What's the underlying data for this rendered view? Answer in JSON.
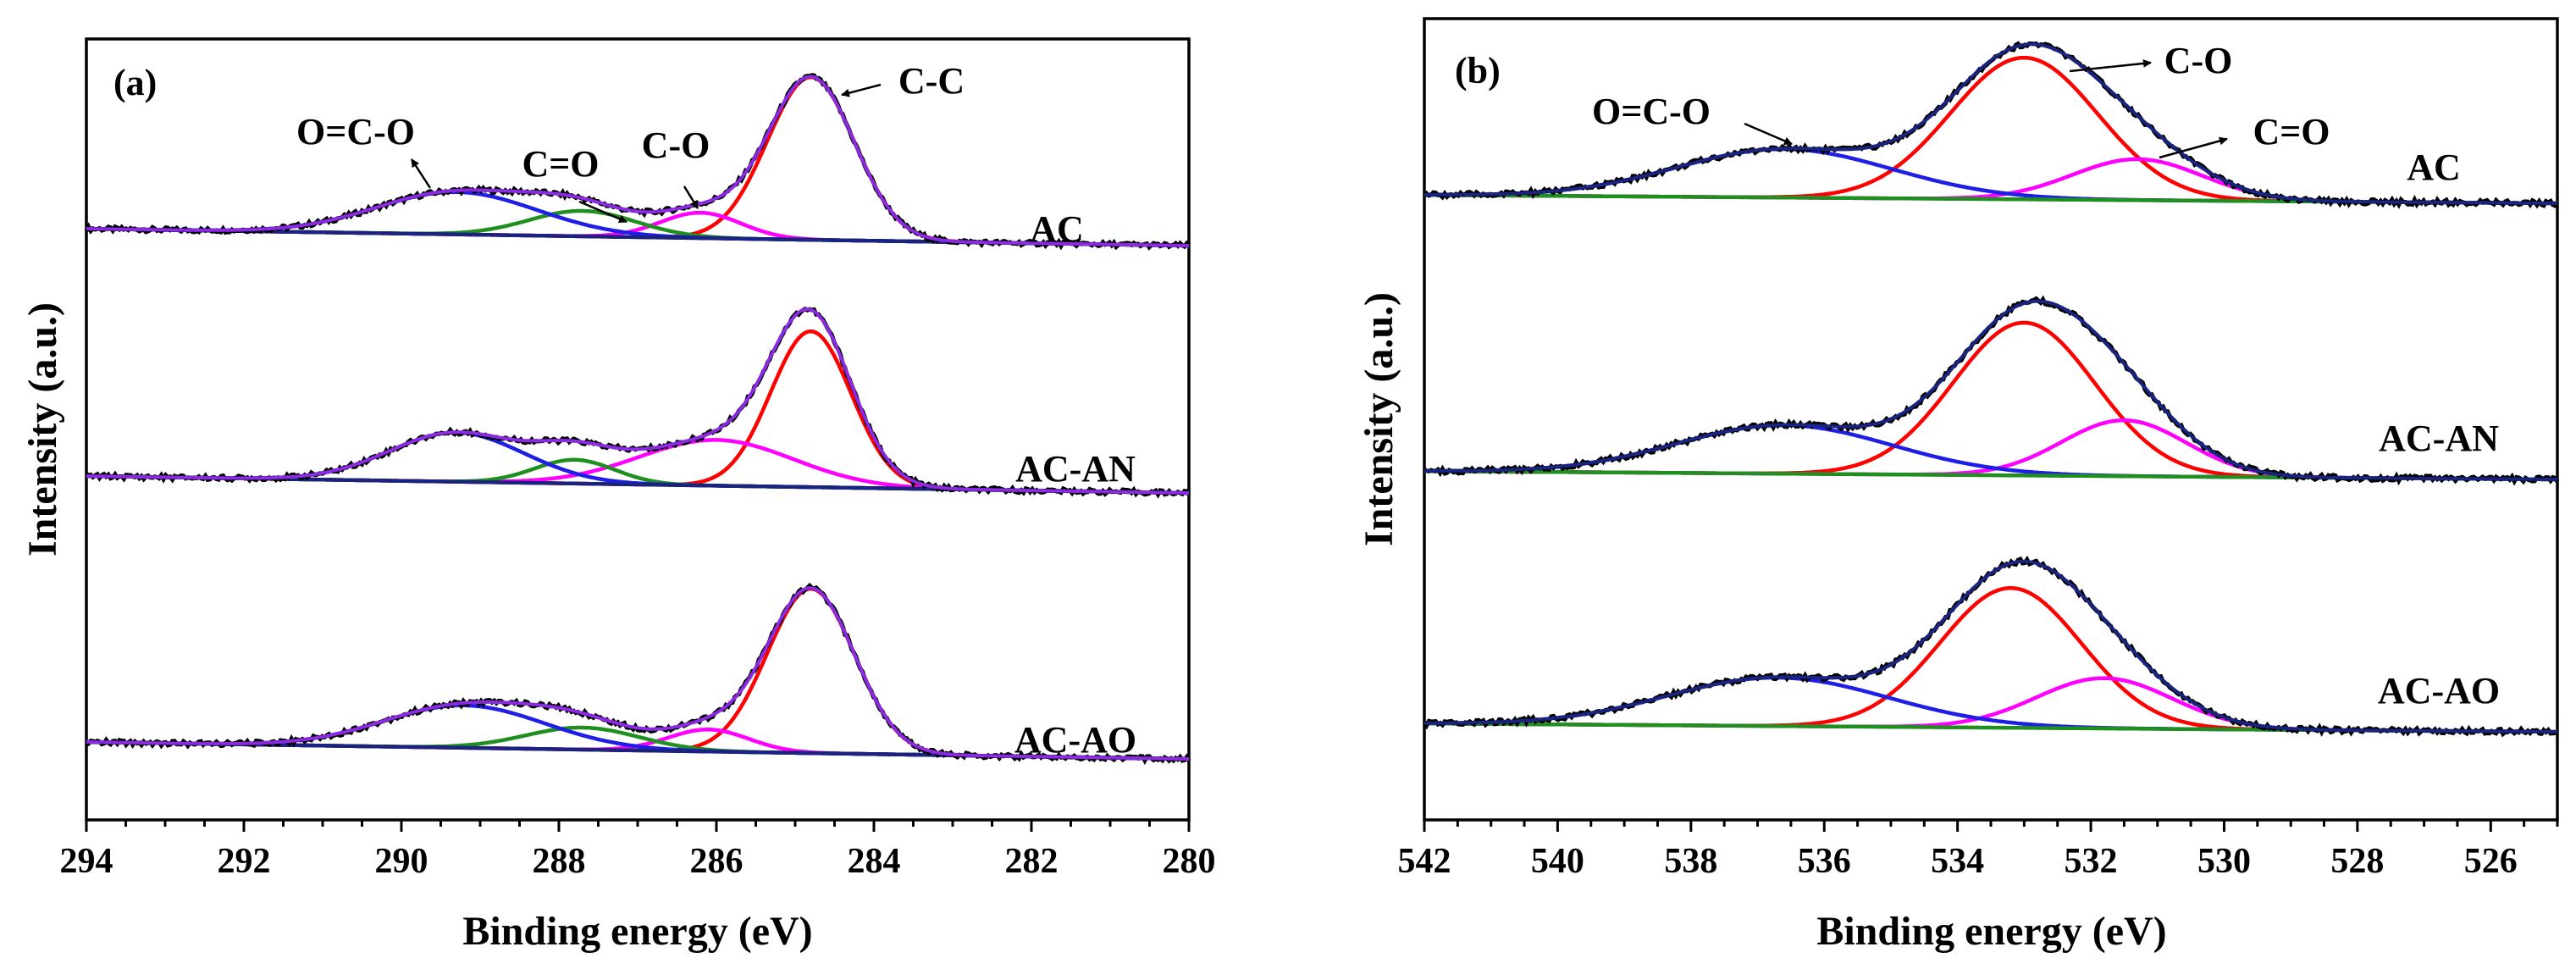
{
  "colors": {
    "raw": "#000000",
    "envelope": "#8a2be2",
    "envelope_b": "#1a237e",
    "background": "#1a237e",
    "background_b": "#1f8f1f",
    "red": "#ff0000",
    "green": "#1f8f1f",
    "blue": "#1e1ee6",
    "magenta": "#ff00ff"
  },
  "chart_data": [
    {
      "type": "line",
      "panel_label": "(a)",
      "xlabel": "Binding energy (eV)",
      "ylabel": "Intensity (a.u.)",
      "xlim": [
        294,
        280
      ],
      "x_reversed": true,
      "xticks": [
        294,
        292,
        290,
        288,
        286,
        284,
        282,
        280
      ],
      "yticks": [],
      "grid": false,
      "samples": [
        {
          "name": "AC",
          "baseline": {
            "start": 1.0,
            "end": 0.0
          },
          "components": [
            {
              "label": "C-C",
              "center": 284.8,
              "height": 9.6,
              "fwhm": 1.3,
              "color": "red"
            },
            {
              "label": "C-O",
              "center": 286.2,
              "height": 1.5,
              "fwhm": 1.2,
              "color": "magenta"
            },
            {
              "label": "C=O",
              "center": 287.7,
              "height": 1.5,
              "fwhm": 1.6,
              "color": "green"
            },
            {
              "label": "O=C-O",
              "center": 289.3,
              "height": 2.5,
              "fwhm": 2.4,
              "color": "blue"
            }
          ]
        },
        {
          "name": "AC-AN",
          "baseline": {
            "start": 1.0,
            "end": 0.0
          },
          "components": [
            {
              "label": "C-C",
              "center": 284.8,
              "height": 9.2,
              "fwhm": 1.2,
              "color": "red"
            },
            {
              "label": "C-O",
              "center": 286.0,
              "height": 2.7,
              "fwhm": 2.3,
              "color": "magenta"
            },
            {
              "label": "C=O",
              "center": 287.8,
              "height": 1.4,
              "fwhm": 1.2,
              "color": "green"
            },
            {
              "label": "O=C-O",
              "center": 289.3,
              "height": 2.9,
              "fwhm": 2.0,
              "color": "blue"
            }
          ]
        },
        {
          "name": "AC-AO",
          "baseline": {
            "start": 1.0,
            "end": 0.0
          },
          "components": [
            {
              "label": "C-C",
              "center": 284.8,
              "height": 9.7,
              "fwhm": 1.3,
              "color": "red"
            },
            {
              "label": "C-O",
              "center": 286.1,
              "height": 1.3,
              "fwhm": 1.2,
              "color": "magenta"
            },
            {
              "label": "C=O",
              "center": 287.7,
              "height": 1.3,
              "fwhm": 1.7,
              "color": "green"
            },
            {
              "label": "O=C-O",
              "center": 289.2,
              "height": 2.5,
              "fwhm": 2.4,
              "color": "blue"
            }
          ]
        }
      ],
      "annotations": [
        "O=C-O",
        "C=O",
        "C-O",
        "C-C"
      ]
    },
    {
      "type": "line",
      "panel_label": "(b)",
      "xlabel": "Binding energy (eV)",
      "ylabel": "Intensity (a.u.)",
      "xlim": [
        542,
        525
      ],
      "x_reversed": true,
      "xticks": [
        542,
        540,
        538,
        536,
        534,
        532,
        530,
        528,
        526
      ],
      "yticks": [],
      "grid": false,
      "samples": [
        {
          "name": "AC",
          "baseline": {
            "start": 0.45,
            "end": 0.0
          },
          "components": [
            {
              "label": "C-O",
              "center": 533.0,
              "height": 7.6,
              "fwhm": 2.6,
              "color": "red"
            },
            {
              "label": "C=O",
              "center": 531.3,
              "height": 2.2,
              "fwhm": 2.3,
              "color": "magenta"
            },
            {
              "label": "O=C-O",
              "center": 536.6,
              "height": 2.6,
              "fwhm": 3.8,
              "color": "blue"
            }
          ]
        },
        {
          "name": "AC-AN",
          "baseline": {
            "start": 0.45,
            "end": 0.0
          },
          "components": [
            {
              "label": "C-O",
              "center": 533.0,
              "height": 8.2,
              "fwhm": 2.5,
              "color": "red"
            },
            {
              "label": "C=O",
              "center": 531.5,
              "height": 3.0,
              "fwhm": 2.2,
              "color": "magenta"
            },
            {
              "label": "O=C-O",
              "center": 536.6,
              "height": 2.6,
              "fwhm": 3.8,
              "color": "blue"
            }
          ]
        },
        {
          "name": "AC-AO",
          "baseline": {
            "start": 0.45,
            "end": 0.0
          },
          "components": [
            {
              "label": "C-O",
              "center": 533.2,
              "height": 7.5,
              "fwhm": 2.5,
              "color": "red"
            },
            {
              "label": "C=O",
              "center": 531.8,
              "height": 2.7,
              "fwhm": 2.4,
              "color": "magenta"
            },
            {
              "label": "O=C-O",
              "center": 536.7,
              "height": 2.6,
              "fwhm": 3.9,
              "color": "blue"
            }
          ]
        }
      ],
      "annotations": [
        "O=C-O",
        "C-O",
        "C=O"
      ]
    }
  ]
}
